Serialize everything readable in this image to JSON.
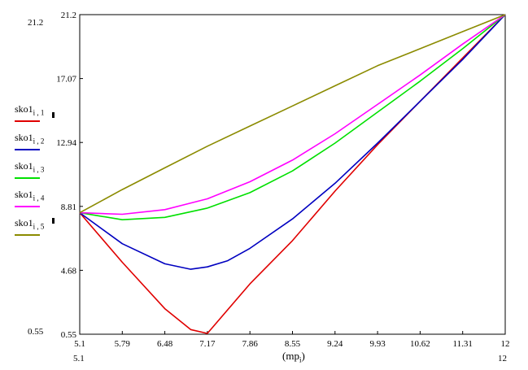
{
  "chart_data": {
    "type": "line",
    "title": "",
    "xlabel": "mp_i",
    "xlabel_main": "mp",
    "xlabel_sub": "i",
    "ylabel": "",
    "xlim": [
      5.1,
      12
    ],
    "ylim": [
      0.55,
      21.2
    ],
    "x_ticks": [
      "5.1",
      "5.79",
      "6.48",
      "7.17",
      "7.86",
      "8.55",
      "9.24",
      "9.93",
      "10.62",
      "11.31",
      "12"
    ],
    "y_ticks": [
      "0.55",
      "4.68",
      "8.81",
      "12.94",
      "17.07",
      "21.2"
    ],
    "corner_labels": {
      "y_top": "21.2",
      "y_bottom": "0.55",
      "x_left": "5.1",
      "x_right": "12"
    },
    "grid": false,
    "legend_position": "left",
    "series": [
      {
        "name": "sko1_i,1",
        "name_main": "sko1",
        "name_sub": "i , 1",
        "color": "#e00000",
        "x": [
          5.1,
          5.79,
          6.48,
          6.9,
          7.17,
          7.86,
          8.55,
          9.24,
          9.93,
          10.62,
          11.31,
          12
        ],
        "y": [
          8.4,
          5.2,
          2.2,
          0.85,
          0.6,
          3.8,
          6.6,
          9.8,
          12.8,
          15.6,
          18.4,
          21.2
        ]
      },
      {
        "name": "sko1_i,2",
        "name_main": "sko1",
        "name_sub": "i , 2",
        "color": "#0000c0",
        "x": [
          5.1,
          5.79,
          6.48,
          6.9,
          7.17,
          7.5,
          7.86,
          8.55,
          9.24,
          9.93,
          10.62,
          11.31,
          12
        ],
        "y": [
          8.4,
          6.4,
          5.1,
          4.75,
          4.9,
          5.3,
          6.1,
          8.0,
          10.3,
          12.9,
          15.6,
          18.3,
          21.2
        ]
      },
      {
        "name": "sko1_i,3",
        "name_main": "sko1",
        "name_sub": "i , 3",
        "color": "#00e000",
        "x": [
          5.1,
          5.79,
          6.48,
          7.17,
          7.86,
          8.55,
          9.24,
          9.93,
          10.62,
          11.31,
          12
        ],
        "y": [
          8.4,
          7.95,
          8.1,
          8.7,
          9.7,
          11.1,
          12.9,
          14.9,
          16.9,
          19.0,
          21.2
        ]
      },
      {
        "name": "sko1_i,4",
        "name_main": "sko1",
        "name_sub": "i , 4",
        "color": "#ff00ff",
        "x": [
          5.1,
          5.79,
          6.48,
          7.17,
          7.86,
          8.55,
          9.24,
          9.93,
          10.62,
          11.31,
          12
        ],
        "y": [
          8.4,
          8.3,
          8.6,
          9.3,
          10.4,
          11.8,
          13.5,
          15.4,
          17.3,
          19.3,
          21.2
        ]
      },
      {
        "name": "sko1_i,5",
        "name_main": "sko1",
        "name_sub": "i , 5",
        "color": "#8b8b00",
        "x": [
          5.1,
          5.79,
          6.48,
          7.17,
          7.86,
          8.55,
          9.24,
          9.93,
          10.62,
          11.31,
          12
        ],
        "y": [
          8.4,
          9.9,
          11.3,
          12.7,
          14.0,
          15.3,
          16.6,
          17.9,
          19.0,
          20.1,
          21.2
        ]
      }
    ]
  }
}
